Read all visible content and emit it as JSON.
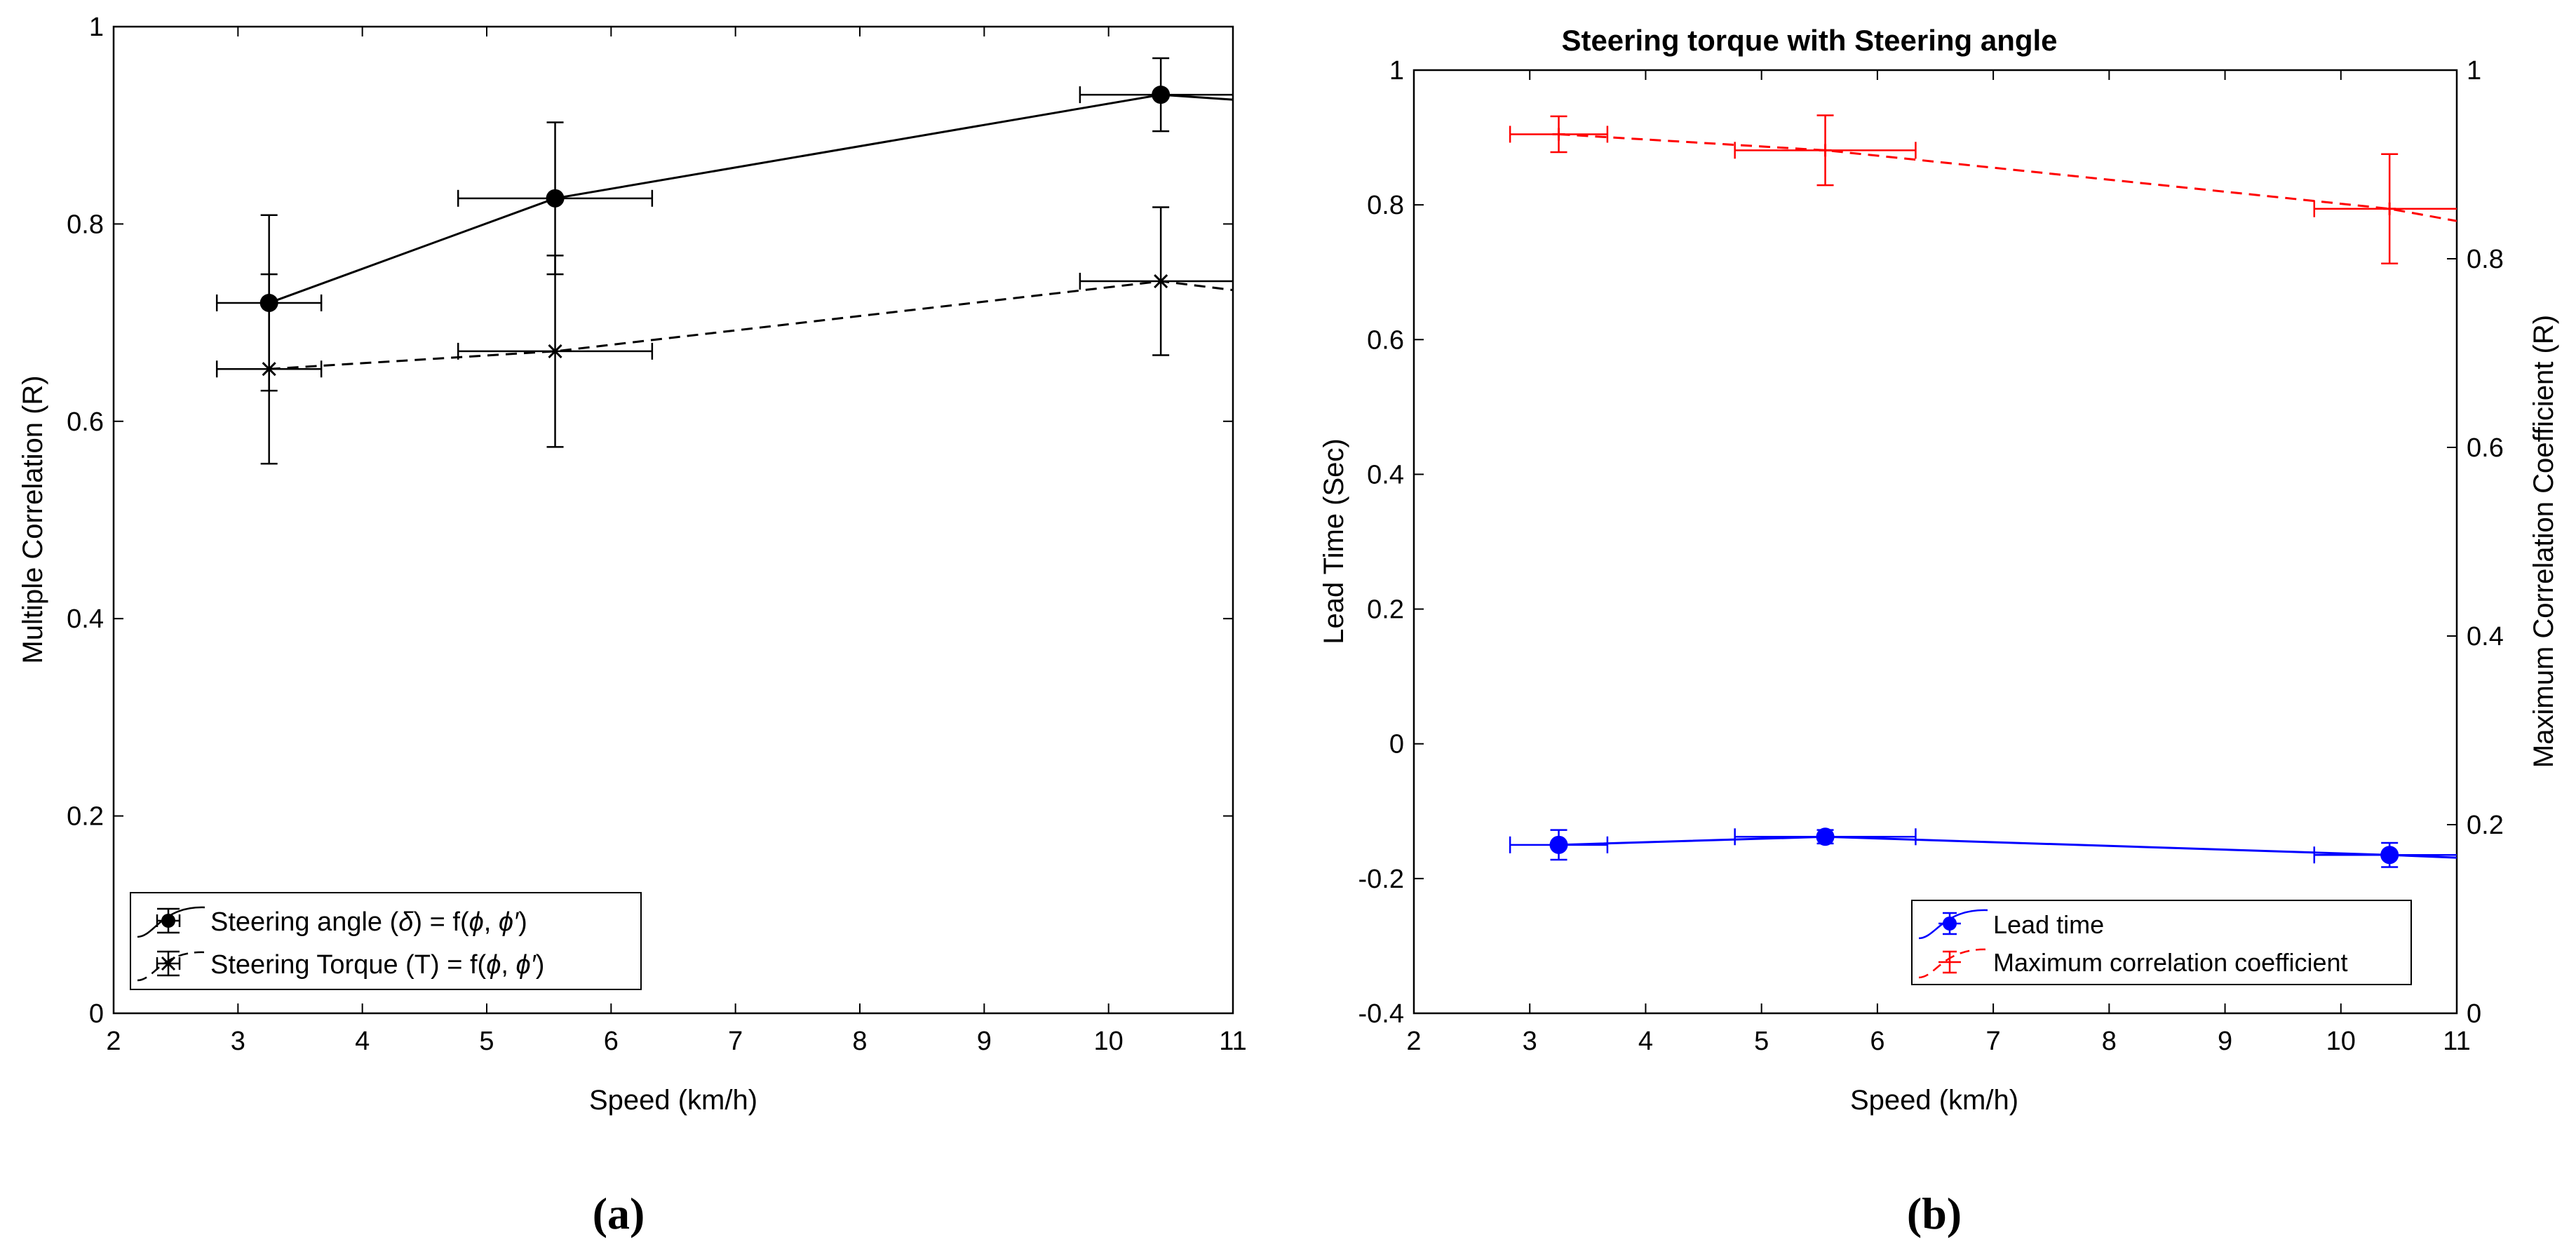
{
  "chart_data": [
    {
      "panel_label": "(a)",
      "type": "line",
      "title": "",
      "xlabel": "Speed (km/h)",
      "ylabel": "Multiple Correlation (R)",
      "xlim": [
        2,
        11
      ],
      "ylim": [
        0,
        1
      ],
      "xticks": [
        "2",
        "3",
        "4",
        "5",
        "6",
        "7",
        "8",
        "9",
        "10",
        "11"
      ],
      "yticks": [
        "0",
        "0.2",
        "0.4",
        "0.6",
        "0.8",
        "1"
      ],
      "legend_position": "bottom-left",
      "series": [
        {
          "name": "Steering angle",
          "legend": {
            "pre": "Steering angle (",
            "sym": "δ",
            "mid": ") = f(",
            "s1": "ϕ",
            "comma": ", ",
            "s2": "ϕ",
            "prime": "′",
            "post": ")"
          },
          "color": "#000000",
          "dash": "solid",
          "marker": "circle",
          "x": [
            3.25,
            5.55,
            10.42,
            11.0
          ],
          "y": [
            0.72,
            0.826,
            0.931,
            0.926
          ],
          "err_y": [
            0.089,
            0.077,
            0.037,
            null
          ],
          "err_x": [
            0.42,
            0.78,
            0.65,
            null
          ]
        },
        {
          "name": "Steering Torque",
          "legend": {
            "pre": "Steering Torque (T) = f(",
            "sym": "",
            "mid": "",
            "s1": "ϕ",
            "comma": ", ",
            "s2": "ϕ",
            "prime": "′",
            "post": ")"
          },
          "color": "#000000",
          "dash": "dashed",
          "marker": "x",
          "x": [
            3.25,
            5.55,
            10.42,
            11.0
          ],
          "y": [
            0.653,
            0.671,
            0.742,
            0.733
          ],
          "err_y": [
            0.096,
            0.097,
            0.075,
            null
          ],
          "err_x": [
            0.42,
            0.78,
            0.65,
            null
          ]
        }
      ]
    },
    {
      "panel_label": "(b)",
      "type": "line",
      "title": "Steering torque with Steering angle",
      "xlabel": "Speed (km/h)",
      "ylabel": "Lead Time (Sec)",
      "y2label": "Maximum Correlation Coefficient (R)",
      "xlim": [
        2,
        11
      ],
      "ylim": [
        -0.4,
        1
      ],
      "y2lim": [
        0,
        1
      ],
      "xticks": [
        "2",
        "3",
        "4",
        "5",
        "6",
        "7",
        "8",
        "9",
        "10",
        "11"
      ],
      "yticks": [
        "-0.4",
        "-0.2",
        "0",
        "0.2",
        "0.4",
        "0.6",
        "0.8",
        "1"
      ],
      "y2ticks": [
        "0",
        "0.2",
        "0.4",
        "0.6",
        "0.8",
        "1"
      ],
      "legend_position": "bottom-right",
      "series": [
        {
          "name": "Lead time",
          "axis": "left",
          "color": "#0000ff",
          "dash": "solid",
          "marker": "circle",
          "x": [
            3.25,
            5.55,
            10.42,
            11.0
          ],
          "y": [
            -0.15,
            -0.138,
            -0.165,
            -0.169
          ],
          "err_y": [
            0.022,
            0.01,
            0.018,
            null
          ],
          "err_x": [
            0.42,
            0.78,
            0.65,
            null
          ]
        },
        {
          "name": "Maximum correlation coefficient",
          "axis": "right",
          "color": "#ff0000",
          "dash": "dashed",
          "marker": "plus",
          "x": [
            3.25,
            5.55,
            10.42,
            11.0
          ],
          "y": [
            0.932,
            0.915,
            0.853,
            0.84
          ],
          "err_y": [
            0.019,
            0.037,
            0.058,
            null
          ],
          "err_x": [
            0.42,
            0.78,
            0.65,
            null
          ]
        }
      ]
    }
  ]
}
